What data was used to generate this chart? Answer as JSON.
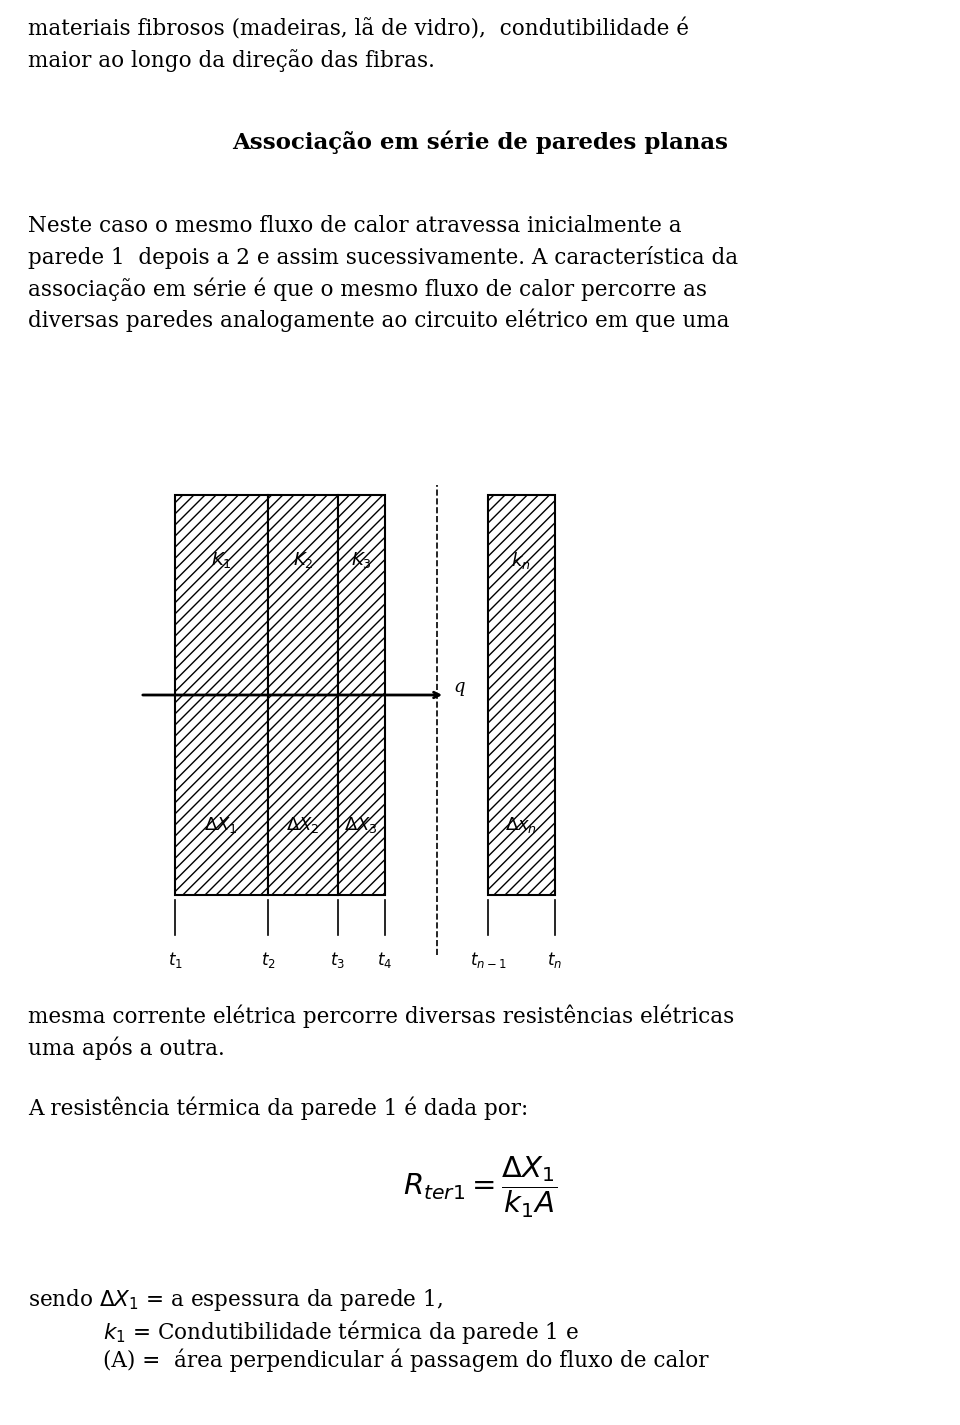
{
  "bg_color": "#ffffff",
  "text_color": "#000000",
  "line1": "materiais fibrosos (madeiras, lã de vidro),  condutibilidade é",
  "line2": "maior ao longo da direção das fibras.",
  "section_title": "Associação em série de paredes planas",
  "para1_lines": [
    "Neste caso o mesmo fluxo de calor atravessa inicialmente a",
    "parede 1  depois a 2 e assim sucessivamente. A característica da",
    "associação em série é que o mesmo fluxo de calor percorre as",
    "diversas paredes analogamente ao circuito elétrico em que uma"
  ],
  "para2_lines": [
    "mesma corrente elétrica percorre diversas resistências elétricas",
    "uma após a outra."
  ],
  "para3": "A resistência térmica da parede 1 é dada por:",
  "sendo1": "sendo $\\Delta X_1$ = a espessura da parede 1,",
  "sendo2": "$k_1$ = Condutibilidade térmica da parede 1 e",
  "sendo3": "(A) =  área perpendicular á passagem do fluxo de calor"
}
